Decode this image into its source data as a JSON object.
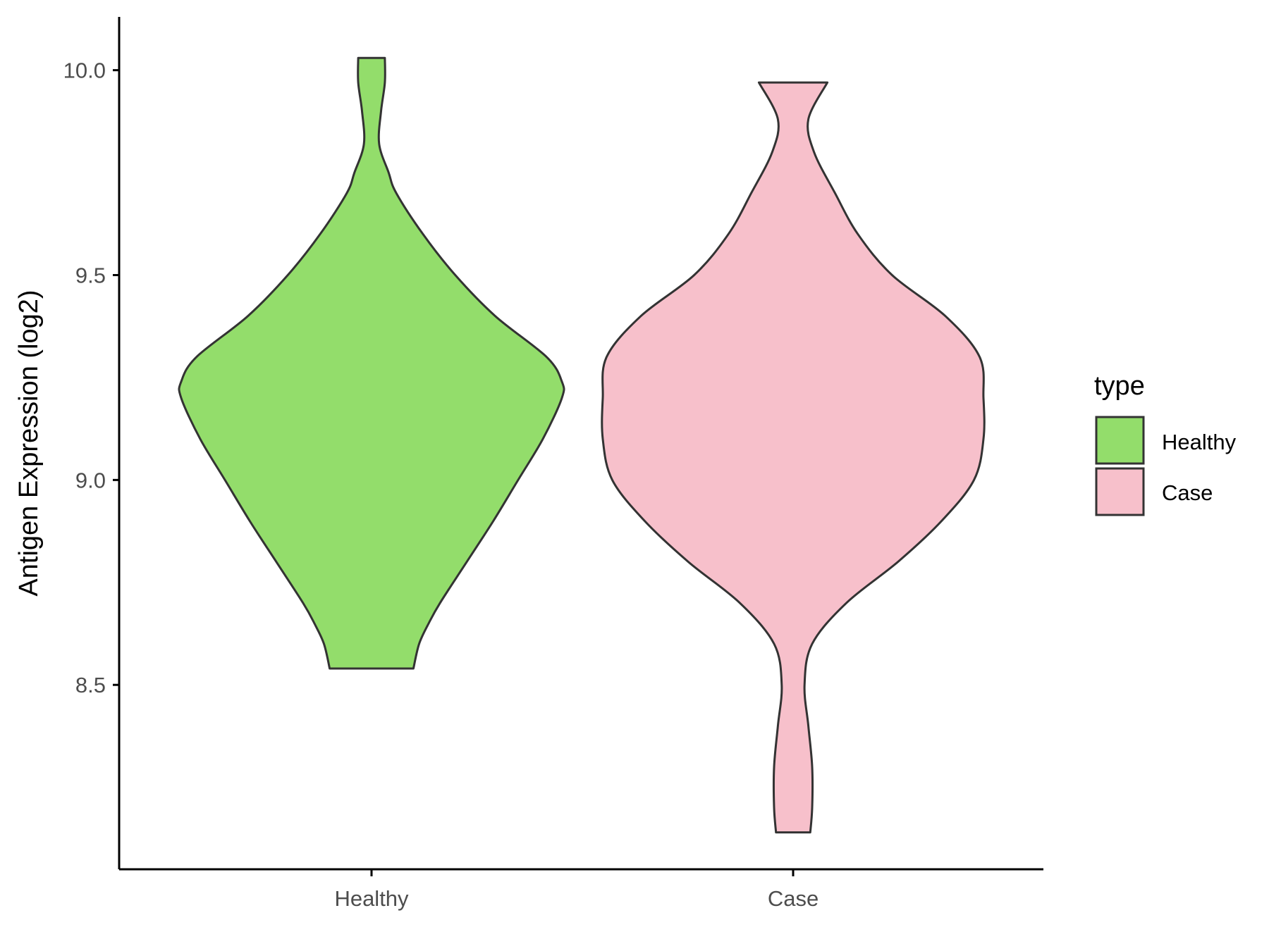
{
  "chart_data": {
    "type": "violin",
    "xlabel": "",
    "ylabel": "Antigen Expression (log2)",
    "ylim": [
      8.05,
      10.13
    ],
    "yticks": [
      "8.5",
      "9.0",
      "9.5",
      "10.0"
    ],
    "categories": [
      "Healthy",
      "Case"
    ],
    "grid": false,
    "legend": {
      "title": "type",
      "position": "right",
      "items": [
        {
          "label": "Healthy",
          "color": "#93dd6b"
        },
        {
          "label": "Case",
          "color": "#f7c0cb"
        }
      ]
    },
    "series": [
      {
        "category": "Healthy",
        "color": "#93dd6b",
        "min": 8.54,
        "max": 10.03,
        "density_profile": [
          [
            8.54,
            0.22
          ],
          [
            8.6,
            0.25
          ],
          [
            8.65,
            0.3
          ],
          [
            8.7,
            0.36
          ],
          [
            8.8,
            0.5
          ],
          [
            8.9,
            0.64
          ],
          [
            9.0,
            0.77
          ],
          [
            9.1,
            0.9
          ],
          [
            9.2,
            1.0
          ],
          [
            9.24,
            1.0
          ],
          [
            9.3,
            0.92
          ],
          [
            9.4,
            0.65
          ],
          [
            9.5,
            0.44
          ],
          [
            9.6,
            0.27
          ],
          [
            9.7,
            0.13
          ],
          [
            9.75,
            0.09
          ],
          [
            9.82,
            0.04
          ],
          [
            9.9,
            0.05
          ],
          [
            9.97,
            0.07
          ],
          [
            10.03,
            0.07
          ]
        ]
      },
      {
        "category": "Case",
        "color": "#f7c0cb",
        "min": 8.14,
        "max": 9.97,
        "density_profile": [
          [
            8.14,
            0.09
          ],
          [
            8.2,
            0.1
          ],
          [
            8.3,
            0.1
          ],
          [
            8.4,
            0.08
          ],
          [
            8.5,
            0.06
          ],
          [
            8.6,
            0.1
          ],
          [
            8.7,
            0.28
          ],
          [
            8.8,
            0.55
          ],
          [
            8.9,
            0.78
          ],
          [
            9.0,
            0.95
          ],
          [
            9.1,
            1.0
          ],
          [
            9.2,
            1.0
          ],
          [
            9.3,
            0.98
          ],
          [
            9.4,
            0.8
          ],
          [
            9.5,
            0.52
          ],
          [
            9.6,
            0.34
          ],
          [
            9.7,
            0.22
          ],
          [
            9.8,
            0.11
          ],
          [
            9.88,
            0.08
          ],
          [
            9.97,
            0.18
          ]
        ]
      }
    ]
  }
}
